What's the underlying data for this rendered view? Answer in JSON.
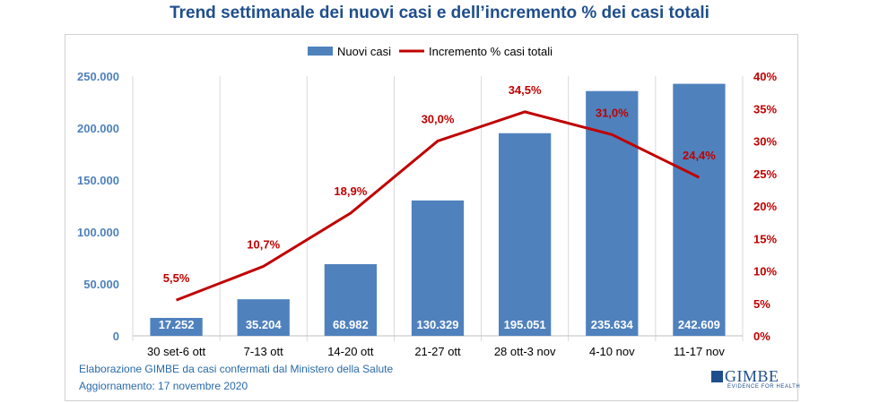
{
  "chart_data": {
    "type": "bar+line",
    "title": "Trend settimanale dei nuovi casi e dell’incremento % dei casi totali",
    "categories": [
      "30 set-6 ott",
      "7-13 ott",
      "14-20 ott",
      "21-27 ott",
      "28 ott-3 nov",
      "4-10 nov",
      "11-17 nov"
    ],
    "series": [
      {
        "name": "Nuovi casi",
        "type": "bar",
        "axis": "left",
        "color": "#4f81bd",
        "values": [
          17252,
          35204,
          68982,
          130329,
          195051,
          235634,
          242609
        ],
        "labels": [
          "17.252",
          "35.204",
          "68.982",
          "130.329",
          "195.051",
          "235.634",
          "242.609"
        ]
      },
      {
        "name": "Incremento % casi totali",
        "type": "line",
        "axis": "right",
        "color": "#c00000",
        "values": [
          5.5,
          10.7,
          18.9,
          30.0,
          34.5,
          31.0,
          24.4
        ],
        "labels": [
          "5,5%",
          "10,7%",
          "18,9%",
          "30,0%",
          "34,5%",
          "31,0%",
          "24,4%"
        ]
      }
    ],
    "y_left": {
      "range": [
        0,
        250000
      ],
      "ticks": [
        "0",
        "50.000",
        "100.000",
        "150.000",
        "200.000",
        "250.000"
      ]
    },
    "y_right": {
      "range": [
        0,
        40
      ],
      "ticks": [
        "0%",
        "5%",
        "10%",
        "15%",
        "20%",
        "25%",
        "30%",
        "35%",
        "40%"
      ]
    },
    "legend_position": "top-center",
    "grid": "vertical category separators"
  },
  "footer": {
    "source": "Elaborazione GIMBE da casi confermati dal Ministero della Salute",
    "updated": "Aggiornamento: 17 novembre 2020"
  },
  "logo": {
    "name": "GIMBE",
    "tagline": "EVIDENCE FOR HEALTH"
  }
}
